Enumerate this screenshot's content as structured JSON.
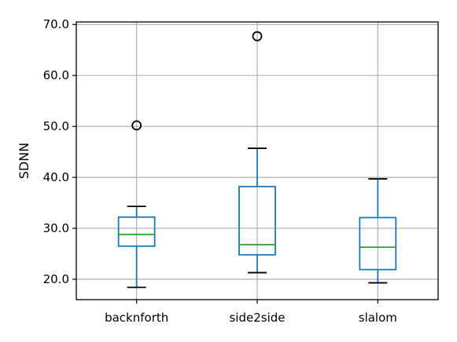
{
  "chart_data": {
    "type": "boxplot",
    "title": "",
    "xlabel": "",
    "ylabel": "SDNN",
    "ylim": [
      16,
      70.5
    ],
    "yticks": [
      "20.0",
      "30.0",
      "40.0",
      "50.0",
      "60.0",
      "70.0"
    ],
    "grid": true,
    "categories": [
      "backnforth",
      "side2side",
      "slalom"
    ],
    "series": [
      {
        "category": "backnforth",
        "whisker_low": 18.4,
        "q1": 26.5,
        "median": 28.8,
        "q3": 32.2,
        "whisker_high": 34.3,
        "outliers": [
          50.2
        ]
      },
      {
        "category": "side2side",
        "whisker_low": 21.3,
        "q1": 24.8,
        "median": 26.8,
        "q3": 38.2,
        "whisker_high": 45.7,
        "outliers": [
          67.7
        ]
      },
      {
        "category": "slalom",
        "whisker_low": 19.3,
        "q1": 21.9,
        "median": 26.3,
        "q3": 32.1,
        "whisker_high": 39.7,
        "outliers": []
      }
    ],
    "colors": {
      "box": "#1f77b4",
      "median": "#2ca02c",
      "whisker_cap": "#000000",
      "grid": "#b0b0b0",
      "outlier": "#000000"
    }
  }
}
